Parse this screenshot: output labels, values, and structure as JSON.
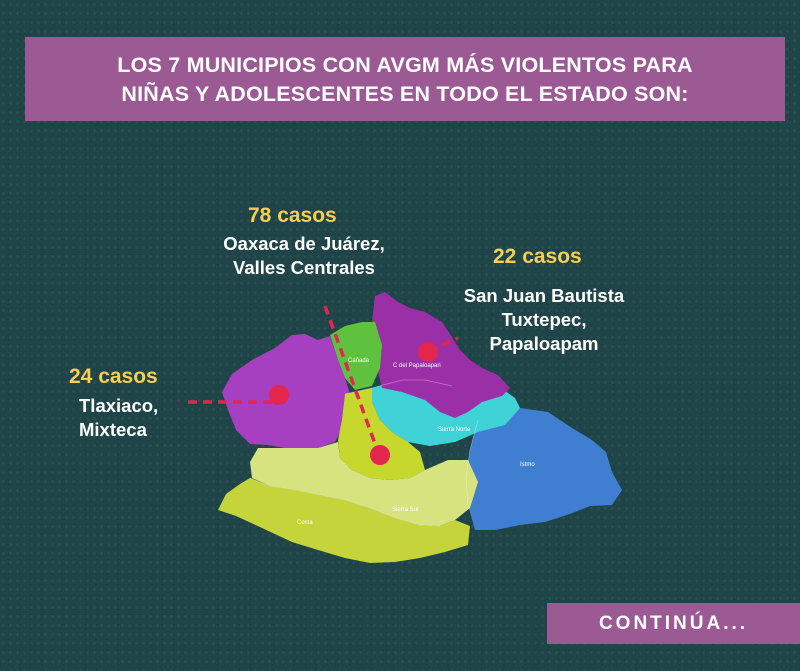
{
  "title": {
    "line1": "LOS 7 MUNICIPIOS CON AVGM MÁS VIOLENTOS PARA",
    "line2": "NIÑAS Y ADOLESCENTES EN TODO EL ESTADO SON:"
  },
  "callouts": [
    {
      "count": "78 casos",
      "line1": "Oaxaca de Juárez,",
      "line2": "Valles Centrales",
      "line3": ""
    },
    {
      "count": "22 casos",
      "line1": "San Juan Bautista",
      "line2": "Tuxtepec,",
      "line3": "Papaloapam"
    },
    {
      "count": "24 casos",
      "line1": "Tlaxiaco,",
      "line2": "Mixteca",
      "line3": ""
    }
  ],
  "map": {
    "region_labels": {
      "canada": "Cañada",
      "papaloapan": "C del Papaloapan",
      "sierra_norte": "Sierra Norte",
      "istmo": "Istmo",
      "costa": "Costa",
      "sierra_sur": "Sierra Sur"
    },
    "colors": {
      "mixteca": "#a63fc0",
      "canada": "#5fc23f",
      "papaloapan": "#9a2fa8",
      "sierra_norte": "#3fd3d8",
      "istmo": "#3f7ed1",
      "valles": "#c6d82e",
      "sierra_sur": "#d6e37f",
      "costa": "#c4d43a",
      "marker": "#e3264d"
    }
  },
  "footer": {
    "continue_label": "CONTINÚA..."
  }
}
